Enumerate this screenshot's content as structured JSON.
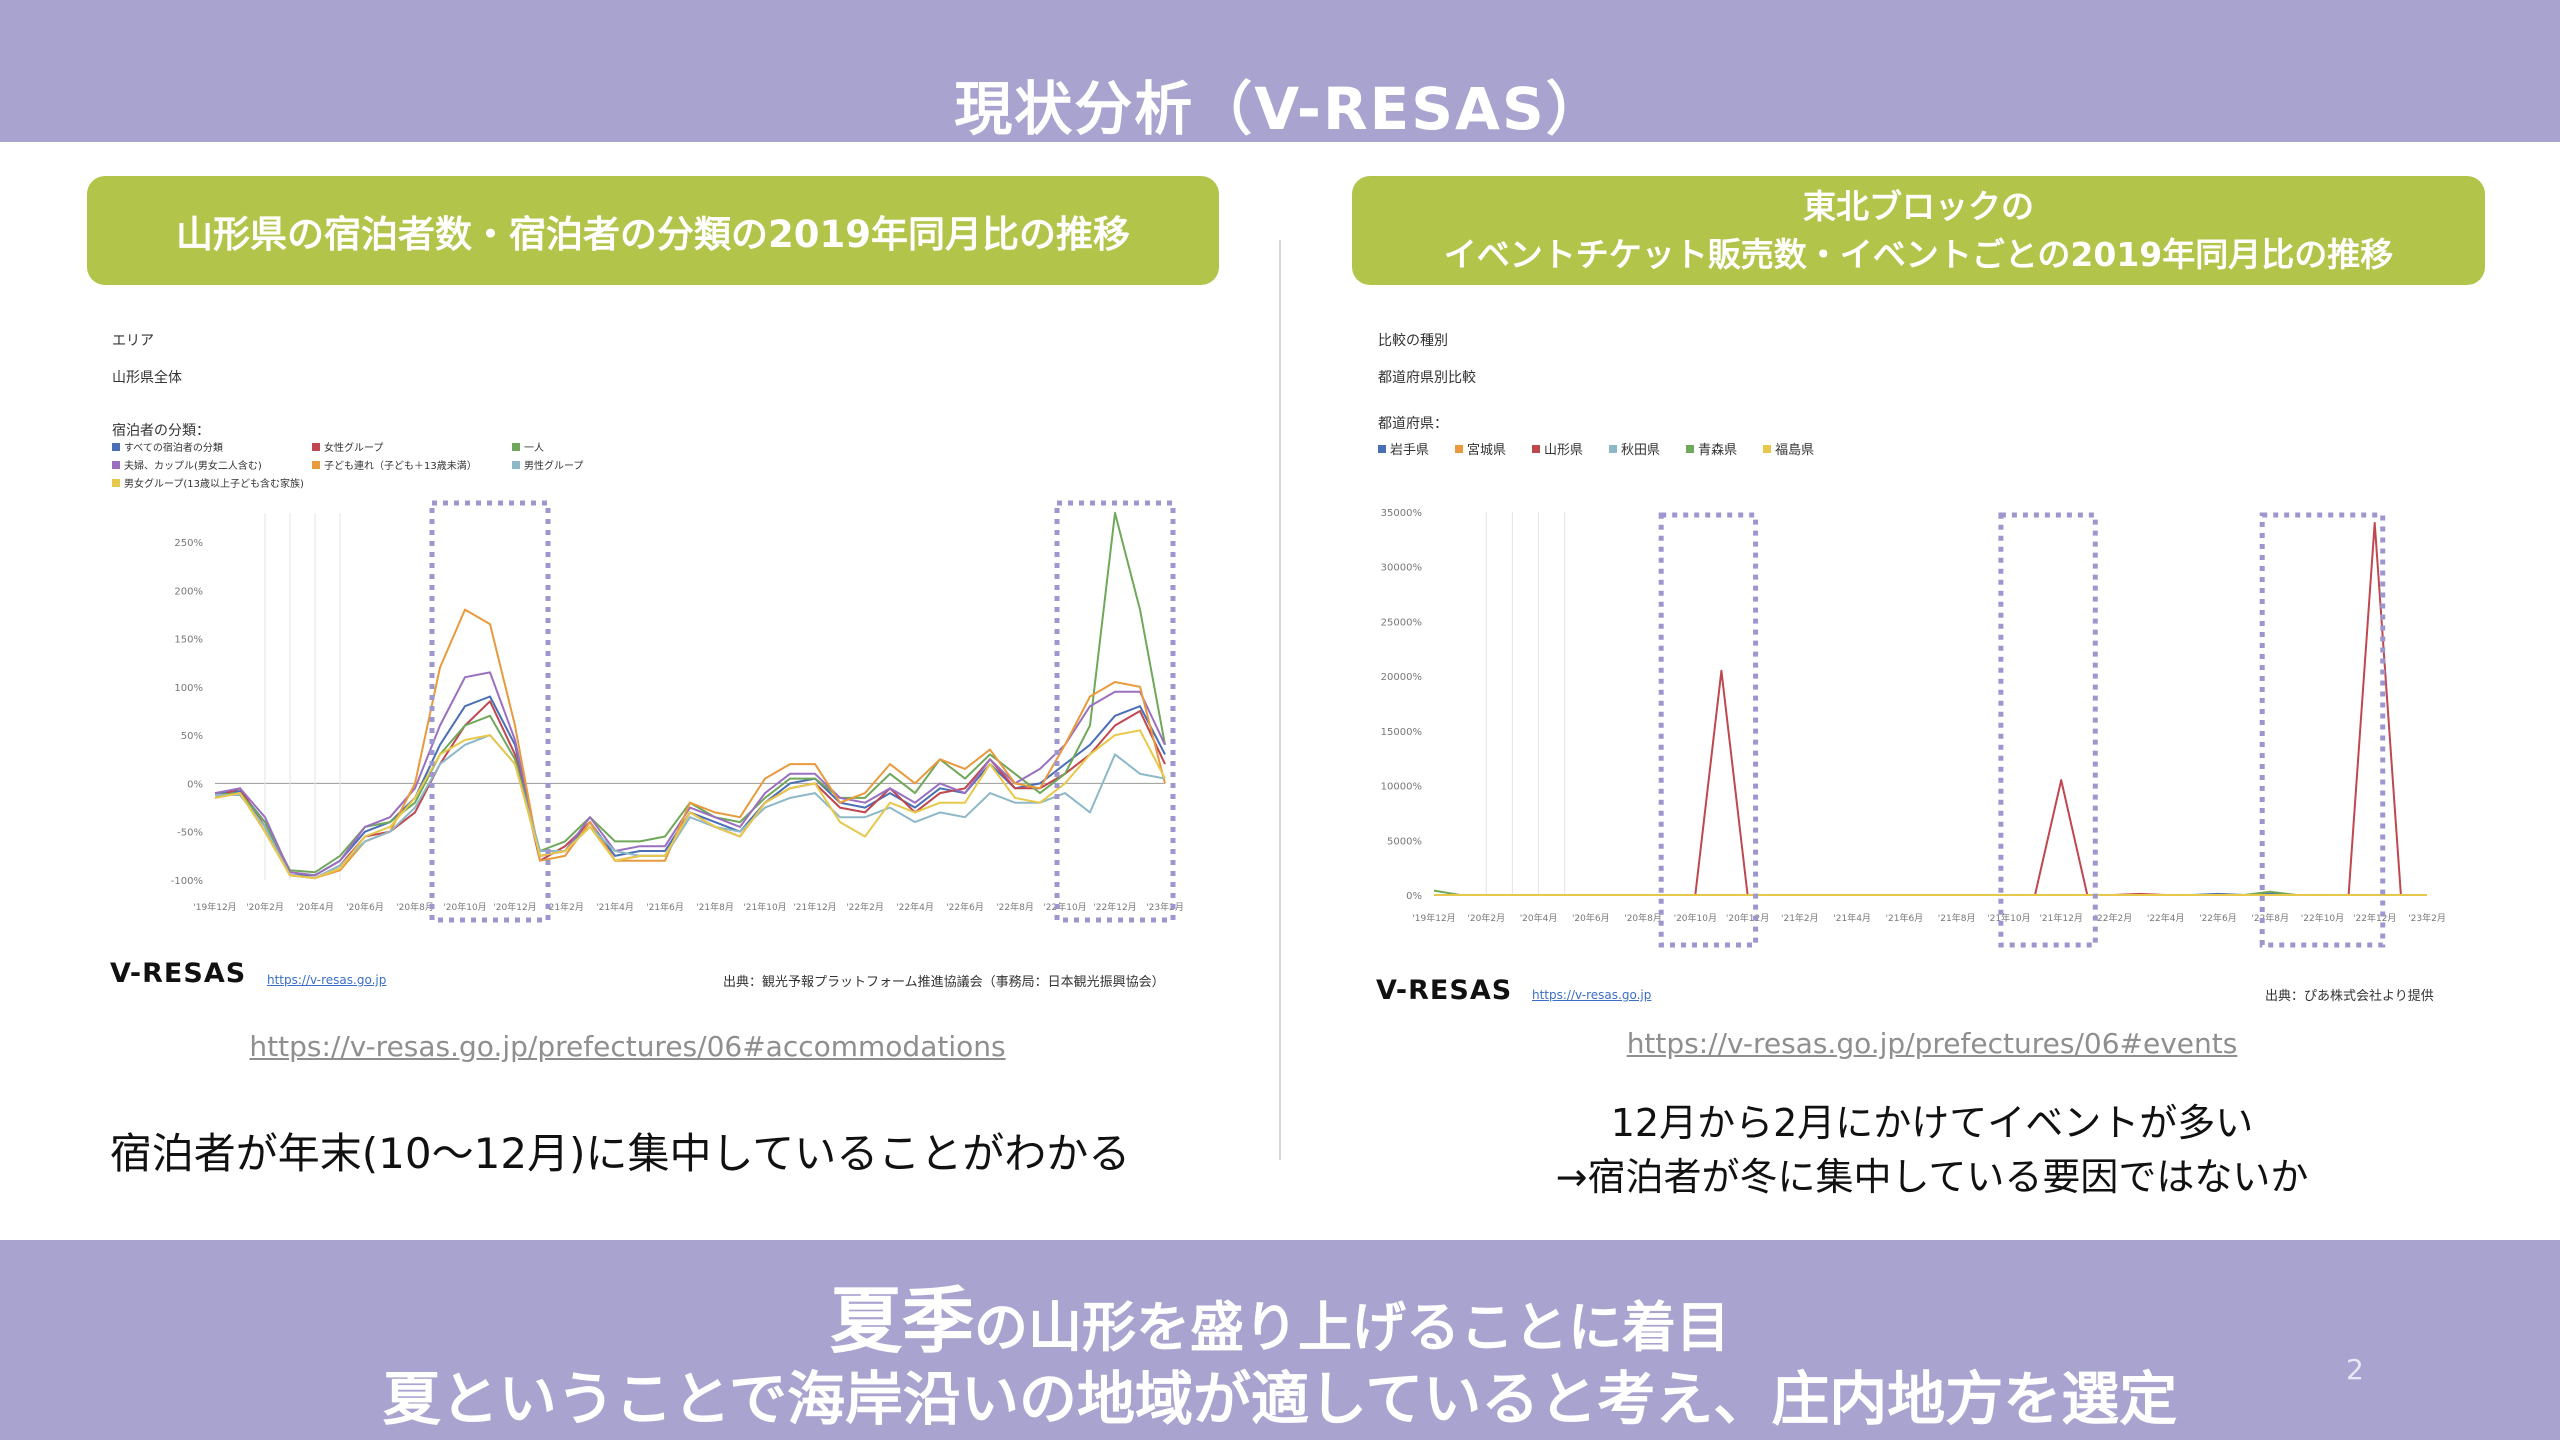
{
  "slide": {
    "title": "現状分析（V-RESAS）",
    "page_number": "2"
  },
  "left": {
    "header": "山形県の宿泊者数・宿泊者の分類の2019年同月比の推移",
    "area_label": "エリア",
    "area_value": "山形県全体",
    "legend_title": "宿泊者の分類：",
    "legend": [
      {
        "name": "すべての宿泊者の分類",
        "color": "#4a6fb5"
      },
      {
        "name": "女性グループ",
        "color": "#c0464f"
      },
      {
        "name": "一人",
        "color": "#6fa85a"
      },
      {
        "name": "夫婦、カップル(男女二人含む)",
        "color": "#9b6fbf"
      },
      {
        "name": "子ども連れ（子ども＋13歳未満）",
        "color": "#e89a3c"
      },
      {
        "name": "男性グループ",
        "color": "#8db8c8"
      },
      {
        "name": "男女グループ(13歳以上子ども含む家族)",
        "color": "#e8c84a"
      }
    ],
    "vresas": "V-RESAS",
    "vresas_link": "https://v-resas.go.jp",
    "source": "出典：観光予報プラットフォーム推進協議会（事務局：日本観光振興協会）",
    "url": "https://v-resas.go.jp/prefectures/06#accommodations",
    "note": "宿泊者が年末(10～12月)に集中していることがわかる"
  },
  "right": {
    "header_line1": "東北ブロックの",
    "header_line2": "イベントチケット販売数・イベントごとの2019年同月比の推移",
    "compare_label": "比較の種別",
    "compare_value": "都道府県別比較",
    "legend_title": "都道府県：",
    "legend": [
      {
        "name": "岩手県",
        "color": "#4a6fb5"
      },
      {
        "name": "宮城県",
        "color": "#e89a3c"
      },
      {
        "name": "山形県",
        "color": "#c0464f"
      },
      {
        "name": "秋田県",
        "color": "#8db8c8"
      },
      {
        "name": "青森県",
        "color": "#6fa85a"
      },
      {
        "name": "福島県",
        "color": "#e8c84a"
      }
    ],
    "vresas": "V-RESAS",
    "vresas_link": "https://v-resas.go.jp",
    "source": "出典：ぴあ株式会社より提供",
    "url": "https://v-resas.go.jp/prefectures/06#events",
    "note_line1": "12月から2月にかけてイベントが多い",
    "note_line2": "→宿泊者が冬に集中している要因ではないか"
  },
  "bottom": {
    "line1_big": "夏季",
    "line1_rest": "の山形を盛り上げることに着目",
    "line2": "夏ということで海岸沿いの地域が適していると考え、庄内地方を選定"
  },
  "chart_data": [
    {
      "type": "line",
      "x": [
        "'19年12月",
        "'20年1月",
        "'20年2月",
        "'20年3月",
        "'20年4月",
        "'20年5月",
        "'20年6月",
        "'20年7月",
        "'20年8月",
        "'20年9月",
        "'20年10月",
        "'20年11月",
        "'20年12月",
        "'21年1月",
        "'21年2月",
        "'21年3月",
        "'21年4月",
        "'21年5月",
        "'21年6月",
        "'21年7月",
        "'21年8月",
        "'21年9月",
        "'21年10月",
        "'21年11月",
        "'21年12月",
        "'22年1月",
        "'22年2月",
        "'22年3月",
        "'22年4月",
        "'22年5月",
        "'22年6月",
        "'22年7月",
        "'22年8月",
        "'22年9月",
        "'22年10月",
        "'22年11月",
        "'22年12月",
        "'23年1月",
        "'23年2月"
      ],
      "x_tick_labels": [
        "'19年12月",
        "'20年2月",
        "'20年4月",
        "'20年6月",
        "'20年8月",
        "'20年10月",
        "'20年12月",
        "'21年2月",
        "'21年4月",
        "'21年6月",
        "'21年8月",
        "'21年10月",
        "'21年12月",
        "'22年2月",
        "'22年4月",
        "'22年6月",
        "'22年8月",
        "'22年10月",
        "'22年12月",
        "'23年2月"
      ],
      "y_ticks": [
        "-100%",
        "-50%",
        "0%",
        "50%",
        "100%",
        "150%",
        "200%",
        "250%"
      ],
      "ylim": [
        -100,
        280
      ],
      "series": [
        {
          "name": "すべての宿泊者の分類",
          "values": [
            -10,
            -8,
            -40,
            -95,
            -95,
            -80,
            -50,
            -40,
            -15,
            40,
            80,
            90,
            40,
            -75,
            -70,
            -40,
            -75,
            -70,
            -70,
            -30,
            -40,
            -50,
            -20,
            0,
            5,
            -20,
            -25,
            -10,
            -25,
            -5,
            -10,
            20,
            -5,
            0,
            20,
            40,
            70,
            80,
            30
          ]
        },
        {
          "name": "女性グループ",
          "values": [
            -15,
            -5,
            -45,
            -95,
            -98,
            -85,
            -55,
            -50,
            -30,
            20,
            60,
            85,
            30,
            -80,
            -65,
            -40,
            -80,
            -75,
            -75,
            -30,
            -45,
            -55,
            -20,
            -5,
            0,
            -25,
            -30,
            -5,
            -30,
            -10,
            -5,
            25,
            -5,
            -5,
            10,
            30,
            60,
            75,
            20
          ]
        },
        {
          "name": "一人",
          "values": [
            -12,
            -10,
            -40,
            -90,
            -92,
            -75,
            -45,
            -40,
            -20,
            30,
            60,
            70,
            25,
            -70,
            -60,
            -35,
            -60,
            -60,
            -55,
            -20,
            -35,
            -40,
            -15,
            5,
            5,
            -15,
            -15,
            10,
            -10,
            25,
            5,
            30,
            10,
            -10,
            10,
            60,
            280,
            180,
            40
          ]
        },
        {
          "name": "夫婦、カップル(男女二人含む)",
          "values": [
            -10,
            -5,
            -35,
            -92,
            -95,
            -80,
            -45,
            -35,
            -5,
            60,
            110,
            115,
            45,
            -75,
            -70,
            -35,
            -70,
            -65,
            -65,
            -25,
            -35,
            -45,
            -10,
            10,
            10,
            -15,
            -20,
            -5,
            -20,
            0,
            -10,
            25,
            0,
            15,
            40,
            80,
            95,
            95,
            40
          ]
        },
        {
          "name": "子ども連れ（子ども＋13歳未満）",
          "values": [
            -15,
            -10,
            -50,
            -95,
            -98,
            -90,
            -60,
            -50,
            0,
            120,
            180,
            165,
            60,
            -80,
            -75,
            -40,
            -80,
            -80,
            -80,
            -20,
            -30,
            -35,
            5,
            20,
            20,
            -20,
            -10,
            20,
            0,
            25,
            15,
            35,
            0,
            -5,
            40,
            90,
            105,
            100,
            0
          ]
        },
        {
          "name": "男性グループ",
          "values": [
            -12,
            -12,
            -45,
            -95,
            -98,
            -85,
            -60,
            -50,
            -25,
            20,
            40,
            50,
            20,
            -70,
            -70,
            -45,
            -70,
            -75,
            -75,
            -35,
            -45,
            -50,
            -25,
            -15,
            -10,
            -35,
            -35,
            -25,
            -40,
            -30,
            -35,
            -10,
            -20,
            -20,
            -10,
            -30,
            30,
            10,
            5
          ]
        },
        {
          "name": "男女グループ(13歳以上子ども含む家族)",
          "values": [
            -15,
            -10,
            -50,
            -95,
            -98,
            -88,
            -55,
            -45,
            -15,
            30,
            45,
            50,
            20,
            -75,
            -70,
            -45,
            -80,
            -75,
            -75,
            -30,
            -45,
            -55,
            -20,
            -5,
            0,
            -40,
            -55,
            -20,
            -30,
            -20,
            -20,
            20,
            -15,
            -20,
            0,
            30,
            50,
            55,
            5
          ]
        }
      ]
    },
    {
      "type": "line",
      "x": [
        "'19年12月",
        "'20年1月",
        "'20年2月",
        "'20年3月",
        "'20年4月",
        "'20年5月",
        "'20年6月",
        "'20年7月",
        "'20年8月",
        "'20年9月",
        "'20年10月",
        "'20年11月",
        "'20年12月",
        "'21年1月",
        "'21年2月",
        "'21年3月",
        "'21年4月",
        "'21年5月",
        "'21年6月",
        "'21年7月",
        "'21年8月",
        "'21年9月",
        "'21年10月",
        "'21年11月",
        "'21年12月",
        "'22年1月",
        "'22年2月",
        "'22年3月",
        "'22年4月",
        "'22年5月",
        "'22年6月",
        "'22年7月",
        "'22年8月",
        "'22年9月",
        "'22年10月",
        "'22年11月",
        "'22年12月",
        "'23年1月",
        "'23年2月"
      ],
      "x_tick_labels": [
        "'19年12月",
        "'20年2月",
        "'20年4月",
        "'20年6月",
        "'20年8月",
        "'20年10月",
        "'20年12月",
        "'21年2月",
        "'21年4月",
        "'21年6月",
        "'21年8月",
        "'21年10月",
        "'21年12月",
        "'22年2月",
        "'22年4月",
        "'22年6月",
        "'22年8月",
        "'22年10月",
        "'22年12月",
        "'23年2月"
      ],
      "y_ticks": [
        "0%",
        "5000%",
        "10000%",
        "15000%",
        "20000%",
        "25000%",
        "30000%",
        "35000%"
      ],
      "ylim": [
        0,
        35000
      ],
      "series": [
        {
          "name": "岩手県",
          "values": [
            0,
            0,
            0,
            0,
            0,
            0,
            0,
            0,
            0,
            0,
            0,
            0,
            0,
            0,
            0,
            0,
            0,
            0,
            0,
            0,
            0,
            0,
            0,
            0,
            0,
            0,
            0,
            0,
            0,
            0,
            100,
            0,
            100,
            0,
            0,
            0,
            0,
            0,
            0
          ]
        },
        {
          "name": "宮城県",
          "values": [
            0,
            0,
            0,
            0,
            0,
            0,
            0,
            0,
            0,
            0,
            0,
            0,
            0,
            0,
            0,
            0,
            0,
            0,
            0,
            0,
            0,
            0,
            0,
            0,
            0,
            0,
            0,
            0,
            0,
            0,
            0,
            0,
            0,
            0,
            0,
            0,
            0,
            0,
            0
          ]
        },
        {
          "name": "山形県",
          "values": [
            0,
            0,
            0,
            0,
            0,
            0,
            0,
            0,
            0,
            0,
            0,
            20500,
            0,
            0,
            0,
            0,
            0,
            0,
            0,
            0,
            0,
            0,
            0,
            0,
            10500,
            0,
            0,
            100,
            0,
            0,
            0,
            0,
            0,
            0,
            0,
            0,
            34000,
            0,
            0
          ]
        },
        {
          "name": "秋田県",
          "values": [
            0,
            0,
            0,
            0,
            0,
            0,
            0,
            0,
            0,
            0,
            0,
            0,
            0,
            0,
            0,
            0,
            0,
            0,
            0,
            0,
            0,
            0,
            0,
            0,
            0,
            0,
            0,
            0,
            0,
            0,
            0,
            0,
            0,
            0,
            0,
            0,
            0,
            0,
            0
          ]
        },
        {
          "name": "青森県",
          "values": [
            400,
            0,
            0,
            0,
            0,
            0,
            0,
            0,
            0,
            0,
            0,
            0,
            0,
            0,
            0,
            0,
            0,
            0,
            0,
            0,
            0,
            0,
            0,
            0,
            0,
            0,
            0,
            0,
            0,
            0,
            0,
            0,
            300,
            0,
            0,
            0,
            0,
            0,
            0
          ]
        },
        {
          "name": "福島県",
          "values": [
            0,
            0,
            0,
            0,
            0,
            0,
            0,
            0,
            0,
            0,
            0,
            0,
            0,
            0,
            0,
            0,
            0,
            0,
            0,
            0,
            0,
            0,
            0,
            0,
            0,
            0,
            0,
            0,
            0,
            0,
            0,
            0,
            0,
            0,
            0,
            0,
            0,
            0,
            0
          ]
        }
      ]
    }
  ]
}
